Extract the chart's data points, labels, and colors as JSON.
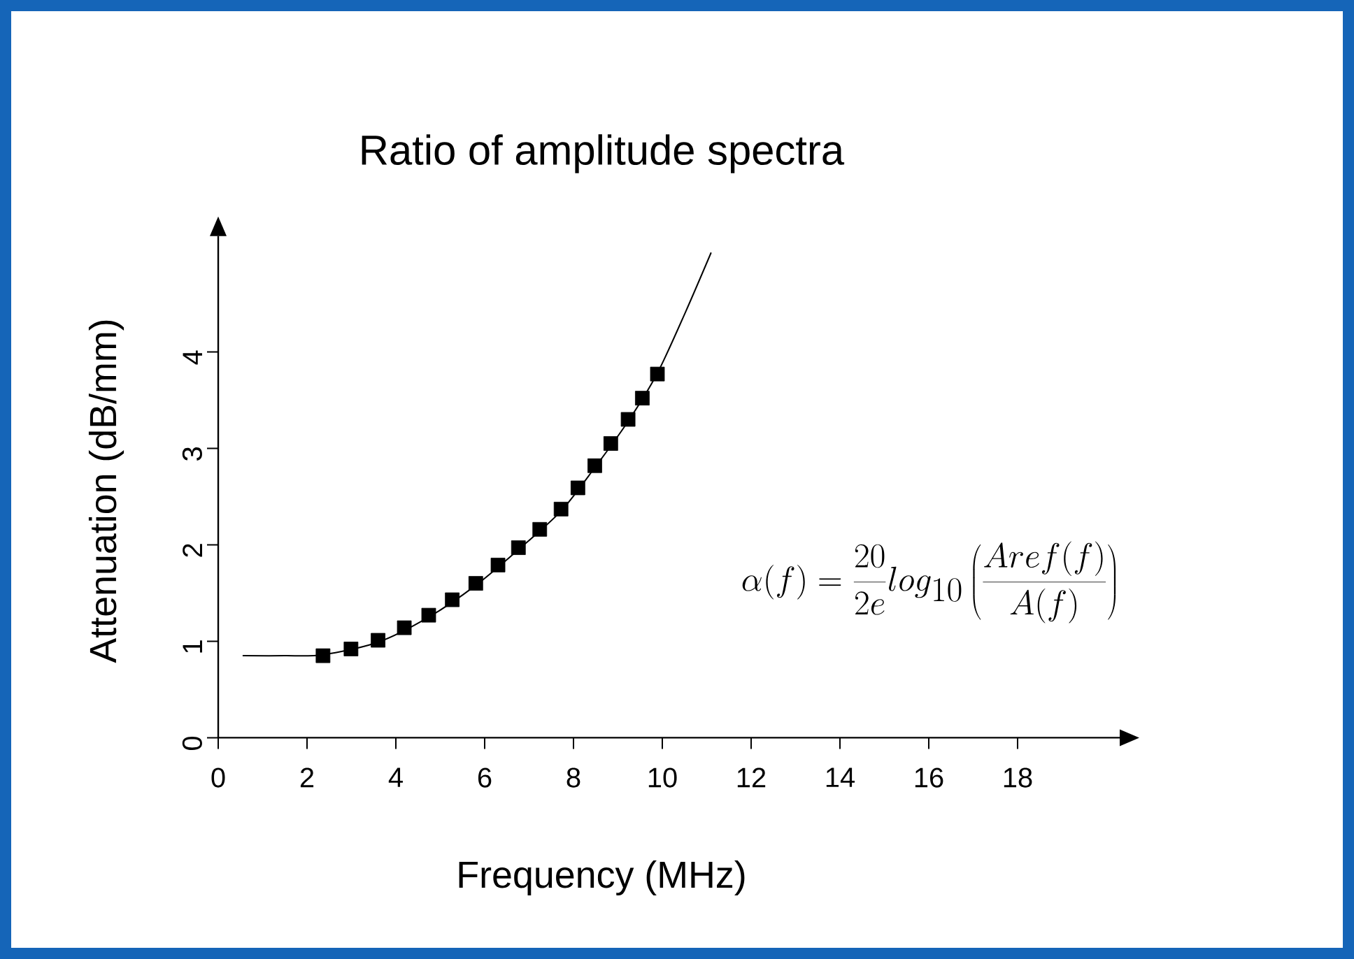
{
  "chart_data": {
    "type": "line",
    "title": "Ratio of amplitude spectra",
    "xlabel": "Frequency (MHz)",
    "ylabel": "Attenuation (dB/mm)",
    "xlim": [
      0,
      20.3
    ],
    "ylim": [
      0,
      5.2
    ],
    "xticks": [
      0,
      2,
      4,
      6,
      8,
      10,
      12,
      14,
      16,
      18
    ],
    "yticks": [
      0,
      1,
      2,
      3,
      4
    ],
    "grid": false,
    "annotations": [
      "\\alpha(f)=\\frac{20}{2e}log_{10}\\left(\\frac{Aref(f)}{A(f)}\\right)"
    ],
    "series": [
      {
        "color": "#000000",
        "marker": "none",
        "x": [
          0.55,
          1.5,
          2.36,
          3.6,
          4.74,
          5.8,
          6.76,
          7.72,
          8.48,
          9.23,
          9.89,
          10.52,
          11.1
        ],
        "values": [
          0.85,
          0.85,
          0.86,
          0.99,
          1.25,
          1.58,
          1.95,
          2.35,
          2.8,
          3.28,
          3.78,
          4.41,
          5.03
        ]
      },
      {
        "type": "scatter",
        "color": "#000000",
        "marker": "square",
        "x": [
          2.36,
          2.99,
          3.6,
          4.19,
          4.74,
          5.27,
          5.8,
          6.3,
          6.76,
          7.24,
          7.72,
          8.1,
          8.48,
          8.84,
          9.23,
          9.55,
          9.89
        ],
        "values": [
          0.85,
          0.92,
          1.01,
          1.14,
          1.27,
          1.43,
          1.6,
          1.79,
          1.97,
          2.16,
          2.37,
          2.59,
          2.82,
          3.05,
          3.3,
          3.52,
          3.77
        ]
      }
    ]
  }
}
